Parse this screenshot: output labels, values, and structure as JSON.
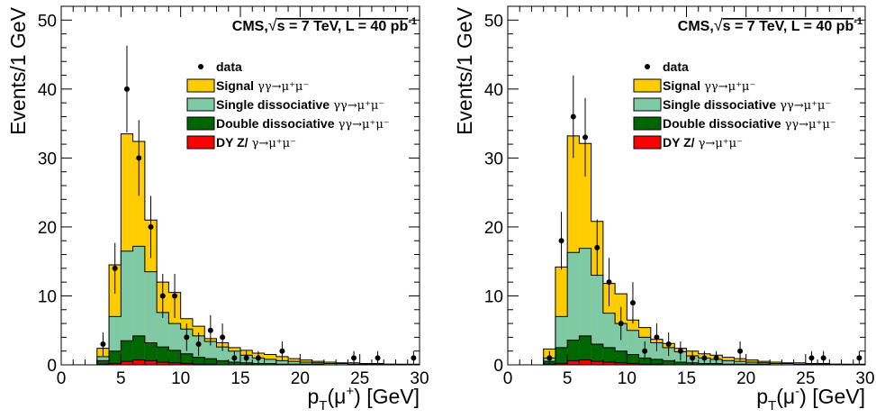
{
  "chart_data": [
    {
      "type": "bar",
      "stacked": true,
      "histogram": true,
      "title": "",
      "annotation": {
        "prefix": "CMS,",
        "sqrt": "√",
        "s_part": "s = 7 TeV, L = 40 pb",
        "superscript": "-1"
      },
      "xlabel": {
        "base": "p",
        "sub": "T",
        "arg": "(μ",
        "charge": "+",
        "close": ") [GeV]"
      },
      "ylabel": "Events/1 GeV",
      "xlim": [
        0,
        30
      ],
      "ylim": [
        0,
        52
      ],
      "xticks": [
        0,
        5,
        10,
        15,
        20,
        25,
        30
      ],
      "yticks": [
        0,
        10,
        20,
        30,
        40,
        50
      ],
      "legend_position": "top-right",
      "legend": [
        {
          "key": "data",
          "bold": "data",
          "process": "",
          "swatch": "marker"
        },
        {
          "key": "signal",
          "bold": "Signal",
          "process": "γγ→μ⁺μ⁻",
          "swatch": "#ffcc00"
        },
        {
          "key": "single",
          "bold": "Single dissociative",
          "process": "γγ→μ⁺μ⁻",
          "swatch": "#7fc9a4"
        },
        {
          "key": "double",
          "bold": "Double dissociative",
          "process": "γγ→μ⁺μ⁻",
          "swatch": "#006600"
        },
        {
          "key": "dy",
          "bold": "DY Z/",
          "process": "γ→μ⁺μ⁻",
          "swatch": "#ff0000"
        }
      ],
      "bin_edges": [
        3,
        4,
        5,
        6,
        7,
        8,
        9,
        10,
        11,
        12,
        13,
        14,
        15,
        16,
        17,
        18,
        19,
        20,
        21,
        22,
        23,
        24,
        25,
        26,
        27,
        28,
        29,
        30
      ],
      "stack_totals": {
        "dy": [
          0.1,
          0.2,
          0.5,
          0.7,
          0.6,
          0.4,
          0.3,
          0.2,
          0.1,
          0.1,
          0,
          0,
          0,
          0,
          0,
          0,
          0,
          0,
          0,
          0,
          0,
          0,
          0,
          0,
          0,
          0,
          0
        ],
        "double": [
          0.6,
          2.0,
          3.5,
          4.2,
          3.2,
          2.6,
          2.1,
          1.6,
          1.1,
          0.9,
          0.6,
          0.4,
          0.3,
          0.2,
          0.2,
          0.1,
          0.1,
          0.1,
          0.1,
          0,
          0,
          0,
          0,
          0,
          0,
          0,
          0
        ],
        "single": [
          1.2,
          7.0,
          16.5,
          17.2,
          13.5,
          7.6,
          6.0,
          5.2,
          4.2,
          3.4,
          2.6,
          2.0,
          1.4,
          1.0,
          0.8,
          0.6,
          0.5,
          0.4,
          0.3,
          0.2,
          0.2,
          0.1,
          0.1,
          0.1,
          0.1,
          0,
          0
        ],
        "signal": [
          2.4,
          14.5,
          33.5,
          32.4,
          21.0,
          12.0,
          10.5,
          6.7,
          5.6,
          3.8,
          3.2,
          2.5,
          2.1,
          1.7,
          1.5,
          1.2,
          0.9,
          0.7,
          0.5,
          0.4,
          0.3,
          0.3,
          0.2,
          0.2,
          0.1,
          0.1,
          0.1
        ]
      },
      "data_points": [
        {
          "x": 3.5,
          "y": 3,
          "err": 1.7
        },
        {
          "x": 4.5,
          "y": 14,
          "err": 3.7
        },
        {
          "x": 5.5,
          "y": 40,
          "err": 6.3
        },
        {
          "x": 6.5,
          "y": 30,
          "err": 5.5
        },
        {
          "x": 7.5,
          "y": 20,
          "err": 4.5
        },
        {
          "x": 8.5,
          "y": 10,
          "err": 3.2
        },
        {
          "x": 9.5,
          "y": 10,
          "err": 3.2
        },
        {
          "x": 10.5,
          "y": 4,
          "err": 2.0
        },
        {
          "x": 11.5,
          "y": 3,
          "err": 1.7
        },
        {
          "x": 12.5,
          "y": 5,
          "err": 2.2
        },
        {
          "x": 13.5,
          "y": 4,
          "err": 2.0
        },
        {
          "x": 14.5,
          "y": 1,
          "err": 1.0
        },
        {
          "x": 15.5,
          "y": 1,
          "err": 1.0
        },
        {
          "x": 16.5,
          "y": 1,
          "err": 1.0
        },
        {
          "x": 18.5,
          "y": 2,
          "err": 1.4
        },
        {
          "x": 24.5,
          "y": 1,
          "err": 1.0
        },
        {
          "x": 26.5,
          "y": 1,
          "err": 1.0
        },
        {
          "x": 29.5,
          "y": 1,
          "err": 1.0
        }
      ]
    },
    {
      "type": "bar",
      "stacked": true,
      "histogram": true,
      "title": "",
      "annotation": {
        "prefix": "CMS,",
        "sqrt": "√",
        "s_part": "s = 7 TeV, L = 40 pb",
        "superscript": "-1"
      },
      "xlabel": {
        "base": "p",
        "sub": "T",
        "arg": "(μ",
        "charge": "-",
        "close": ") [GeV]"
      },
      "ylabel": "Events/1 GeV",
      "xlim": [
        0,
        30
      ],
      "ylim": [
        0,
        52
      ],
      "xticks": [
        0,
        5,
        10,
        15,
        20,
        25,
        30
      ],
      "yticks": [
        0,
        10,
        20,
        30,
        40,
        50
      ],
      "legend_position": "top-right",
      "legend": [
        {
          "key": "data",
          "bold": "data",
          "process": "",
          "swatch": "marker"
        },
        {
          "key": "signal",
          "bold": "Signal",
          "process": "γγ→μ⁺μ⁻",
          "swatch": "#ffcc00"
        },
        {
          "key": "single",
          "bold": "Single dissociative",
          "process": "γγ→μ⁺μ⁻",
          "swatch": "#7fc9a4"
        },
        {
          "key": "double",
          "bold": "Double dissociative",
          "process": "γγ→μ⁺μ⁻",
          "swatch": "#006600"
        },
        {
          "key": "dy",
          "bold": "DY Z/",
          "process": "γ→μ⁺μ⁻",
          "swatch": "#ff0000"
        }
      ],
      "bin_edges": [
        3,
        4,
        5,
        6,
        7,
        8,
        9,
        10,
        11,
        12,
        13,
        14,
        15,
        16,
        17,
        18,
        19,
        20,
        21,
        22,
        23,
        24,
        25,
        26,
        27,
        28,
        29,
        30
      ],
      "stack_totals": {
        "dy": [
          0.1,
          0.2,
          0.6,
          0.7,
          0.5,
          0.4,
          0.3,
          0.2,
          0.1,
          0.1,
          0,
          0,
          0,
          0,
          0,
          0,
          0,
          0,
          0,
          0,
          0,
          0,
          0,
          0,
          0,
          0,
          0
        ],
        "double": [
          0.5,
          2.5,
          3.6,
          4.2,
          3.0,
          2.5,
          2.0,
          1.5,
          1.0,
          0.8,
          0.6,
          0.4,
          0.3,
          0.2,
          0.2,
          0.1,
          0.1,
          0.1,
          0.1,
          0,
          0,
          0,
          0,
          0,
          0,
          0,
          0
        ],
        "single": [
          1.0,
          7.0,
          16.3,
          16.9,
          13.0,
          7.5,
          6.0,
          5.0,
          4.0,
          3.2,
          2.5,
          1.9,
          1.3,
          1.0,
          0.8,
          0.6,
          0.5,
          0.4,
          0.3,
          0.2,
          0.2,
          0.1,
          0.1,
          0.1,
          0.1,
          0,
          0
        ],
        "signal": [
          2.3,
          14.2,
          33.2,
          32.1,
          20.8,
          11.8,
          10.3,
          6.5,
          5.4,
          3.7,
          3.1,
          2.4,
          2.0,
          1.6,
          1.4,
          1.1,
          0.9,
          0.7,
          0.5,
          0.4,
          0.3,
          0.3,
          0.2,
          0.2,
          0.1,
          0.1,
          0.1
        ]
      },
      "data_points": [
        {
          "x": 3.5,
          "y": 1,
          "err": 1.0
        },
        {
          "x": 4.5,
          "y": 18,
          "err": 4.2
        },
        {
          "x": 5.5,
          "y": 36,
          "err": 6.0
        },
        {
          "x": 6.5,
          "y": 33,
          "err": 5.7
        },
        {
          "x": 7.5,
          "y": 17,
          "err": 4.1
        },
        {
          "x": 8.5,
          "y": 12,
          "err": 3.5
        },
        {
          "x": 9.5,
          "y": 6,
          "err": 2.4
        },
        {
          "x": 10.5,
          "y": 9,
          "err": 3.0
        },
        {
          "x": 11.5,
          "y": 2,
          "err": 1.4
        },
        {
          "x": 12.5,
          "y": 4,
          "err": 2.0
        },
        {
          "x": 13.5,
          "y": 3,
          "err": 1.7
        },
        {
          "x": 14.5,
          "y": 2,
          "err": 1.4
        },
        {
          "x": 15.5,
          "y": 1,
          "err": 1.0
        },
        {
          "x": 16.5,
          "y": 1,
          "err": 1.0
        },
        {
          "x": 17.5,
          "y": 1,
          "err": 1.0
        },
        {
          "x": 19.5,
          "y": 2,
          "err": 1.4
        },
        {
          "x": 25.5,
          "y": 1,
          "err": 1.0
        },
        {
          "x": 26.5,
          "y": 1,
          "err": 1.0
        },
        {
          "x": 29.5,
          "y": 1,
          "err": 1.0
        }
      ]
    }
  ]
}
